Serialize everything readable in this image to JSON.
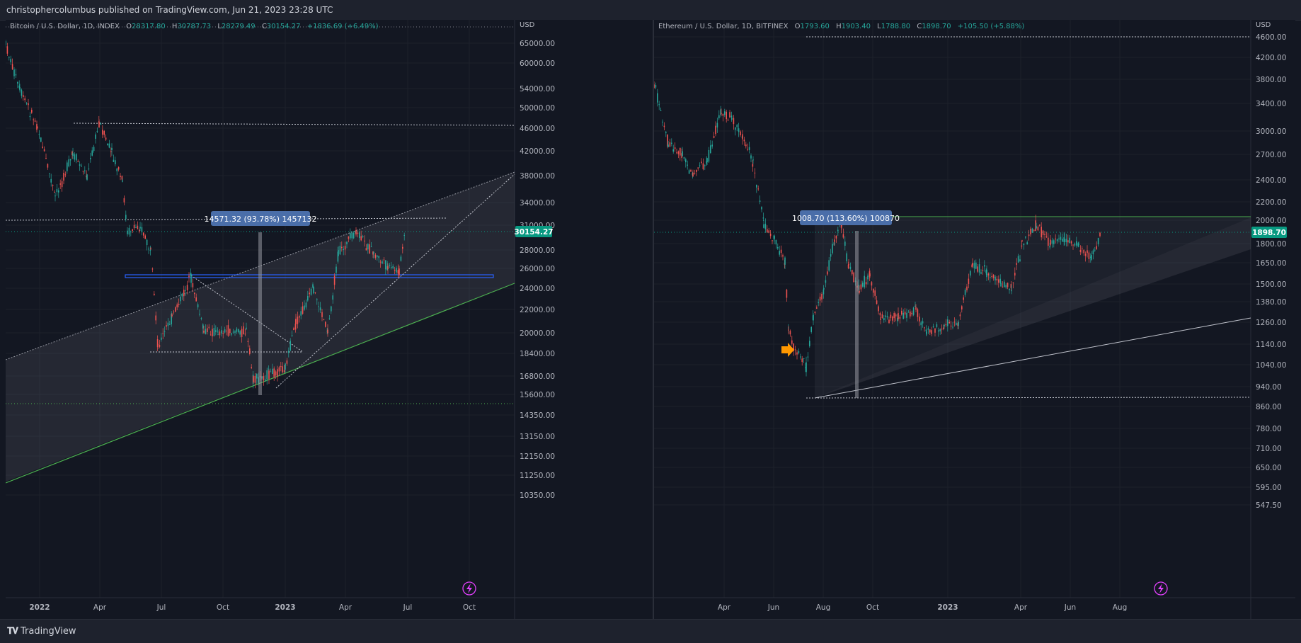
{
  "header": {
    "published": "christophercolumbus published on TradingView.com, Jun 21, 2023 23:28 UTC"
  },
  "footer": {
    "brand": "TradingView",
    "logo_icon": "tradingview-logo-icon"
  },
  "colors": {
    "background": "#131722",
    "grid": "#1f2330",
    "up": "#26a69a",
    "down": "#ef5350",
    "price_tag": "#089981",
    "measure": "#5b7bb2",
    "hline_blue": "#2962ff",
    "trend_green": "#4caf50",
    "arrow_orange": "#ff9800",
    "lightning": "#e040fb"
  },
  "left_chart": {
    "legend": {
      "symbol": "Bitcoin / U.S. Dollar, 1D, INDEX",
      "o_label": "O",
      "o": "28317.80",
      "h_label": "H",
      "h": "30787.73",
      "l_label": "L",
      "l": "28279.49",
      "c_label": "C",
      "c": "30154.27",
      "change": "+1836.69 (+6.49%)"
    },
    "currency": "USD",
    "price_tag": "30154.27",
    "measure_label": "14571.32 (93.78%) 1457132",
    "y_ticks": [
      "65000.00",
      "60000.00",
      "54000.00",
      "50000.00",
      "46000.00",
      "42000.00",
      "38000.00",
      "34000.00",
      "31000.00",
      "28000.00",
      "26000.00",
      "24000.00",
      "22000.00",
      "20000.00",
      "18400.00",
      "16800.00",
      "15600.00",
      "14350.00",
      "13150.00",
      "12150.00",
      "11250.00",
      "10350.00"
    ],
    "x_ticks": [
      "2022",
      "Apr",
      "Jul",
      "Oct",
      "2023",
      "Apr",
      "Jul",
      "Oct"
    ],
    "lightning_icon": "lightning-icon"
  },
  "right_chart": {
    "legend": {
      "symbol": "Ethereum / U.S. Dollar, 1D, BITFINEX",
      "o_label": "O",
      "o": "1793.60",
      "h_label": "H",
      "h": "1903.40",
      "l_label": "L",
      "l": "1788.80",
      "c_label": "C",
      "c": "1898.70",
      "change": "+105.50 (+5.88%)"
    },
    "currency": "USD",
    "price_tag": "1898.70",
    "measure_label": "1008.70 (113.60%) 100870",
    "y_ticks": [
      "4600.00",
      "4200.00",
      "3800.00",
      "3400.00",
      "3000.00",
      "2700.00",
      "2400.00",
      "2200.00",
      "2000.00",
      "1800.00",
      "1650.00",
      "1500.00",
      "1380.00",
      "1260.00",
      "1140.00",
      "1040.00",
      "940.00",
      "860.00",
      "780.00",
      "710.00",
      "650.00",
      "595.00",
      "547.50"
    ],
    "x_ticks": [
      "Apr",
      "Jun",
      "Aug",
      "Oct",
      "2023",
      "Apr",
      "Jun",
      "Aug"
    ],
    "lightning_icon": "lightning-icon",
    "arrow_icon": "orange-arrow-icon"
  }
}
